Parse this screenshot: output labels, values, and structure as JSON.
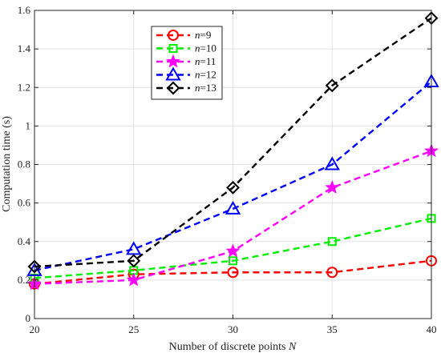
{
  "chart_data": {
    "type": "line",
    "title": "",
    "xlabel": "Number of discrete points",
    "xlabel_var": "N",
    "ylabel": "Computation time (s)",
    "xlim": [
      20,
      40
    ],
    "ylim": [
      0,
      1.6
    ],
    "xticks": [
      20,
      25,
      30,
      35,
      40
    ],
    "yticks": [
      0,
      0.2,
      0.4,
      0.6,
      0.8,
      1,
      1.2,
      1.4,
      1.6
    ],
    "ytick_labels": [
      "0",
      "0.2",
      "0.4",
      "0.6",
      "0.8",
      "1",
      "1.2",
      "1.4",
      "1.6"
    ],
    "grid": true,
    "legend_position": "top-left",
    "x": [
      20,
      25,
      30,
      35,
      40
    ],
    "series": [
      {
        "name": "n=9",
        "legend_var": "n",
        "legend_value": "=9",
        "color": "#ff0000",
        "marker": "circle",
        "values": [
          0.18,
          0.23,
          0.24,
          0.24,
          0.3
        ]
      },
      {
        "name": "n=10",
        "legend_var": "n",
        "legend_value": "=10",
        "color": "#00ee00",
        "marker": "square",
        "values": [
          0.21,
          0.25,
          0.3,
          0.4,
          0.52
        ]
      },
      {
        "name": "n=11",
        "legend_var": "n",
        "legend_value": "=11",
        "color": "#ff00ff",
        "marker": "star",
        "values": [
          0.18,
          0.2,
          0.35,
          0.68,
          0.87
        ]
      },
      {
        "name": "n=12",
        "legend_var": "n",
        "legend_value": "=12",
        "color": "#0000ff",
        "marker": "triangle",
        "values": [
          0.25,
          0.36,
          0.57,
          0.8,
          1.23
        ]
      },
      {
        "name": "n=13",
        "legend_var": "n",
        "legend_value": "=13",
        "color": "#000000",
        "marker": "diamond",
        "values": [
          0.27,
          0.3,
          0.68,
          1.21,
          1.56
        ]
      }
    ]
  }
}
